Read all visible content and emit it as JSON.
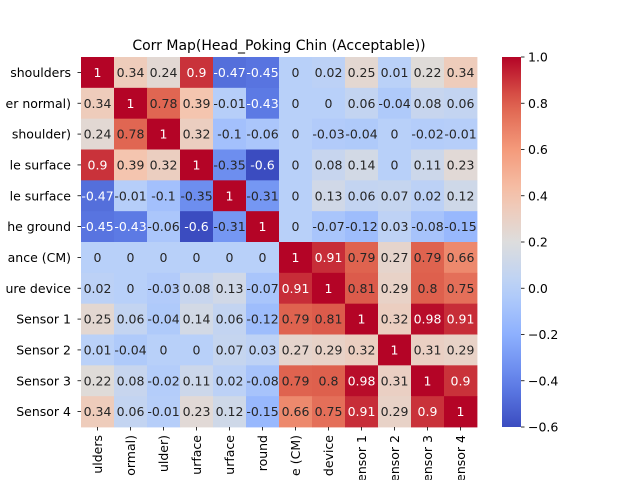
{
  "chart_data": {
    "type": "heatmap",
    "title": "Corr Map(Head_Poking Chin (Acceptable))",
    "row_labels": [
      "shoulders",
      "er normal)",
      "shoulder)",
      "le surface",
      "le surface",
      "he ground",
      "ance (CM)",
      "ure device",
      "Sensor 1",
      "Sensor 2",
      "Sensor 3",
      "Sensor 4"
    ],
    "col_labels": [
      "ulders",
      "ormal)",
      "ulder)",
      "urface",
      "urface",
      "round",
      "e (CM)",
      "device",
      "ensor 1",
      "ensor 2",
      "ensor 3",
      "ensor 4"
    ],
    "values": [
      [
        1,
        0.34,
        0.24,
        0.9,
        -0.47,
        -0.45,
        0,
        0.02,
        0.25,
        0.01,
        0.22,
        0.34
      ],
      [
        0.34,
        1,
        0.78,
        0.39,
        -0.01,
        -0.43,
        0,
        0,
        0.06,
        -0.04,
        0.08,
        0.06
      ],
      [
        0.24,
        0.78,
        1,
        0.32,
        -0.1,
        -0.06,
        0,
        -0.03,
        -0.04,
        0,
        -0.02,
        -0.01
      ],
      [
        0.9,
        0.39,
        0.32,
        1,
        -0.35,
        -0.6,
        0,
        0.08,
        0.14,
        0,
        0.11,
        0.23
      ],
      [
        -0.47,
        -0.01,
        -0.1,
        -0.35,
        1,
        -0.31,
        0,
        0.13,
        0.06,
        0.07,
        0.02,
        0.12
      ],
      [
        -0.45,
        -0.43,
        -0.06,
        -0.6,
        -0.31,
        1,
        0,
        -0.07,
        -0.12,
        0.03,
        -0.08,
        -0.15
      ],
      [
        0,
        0,
        0,
        0,
        0,
        0,
        1,
        0.91,
        0.79,
        0.27,
        0.79,
        0.66
      ],
      [
        0.02,
        0,
        -0.03,
        0.08,
        0.13,
        -0.07,
        0.91,
        1,
        0.81,
        0.29,
        0.8,
        0.75
      ],
      [
        0.25,
        0.06,
        -0.04,
        0.14,
        0.06,
        -0.12,
        0.79,
        0.81,
        1,
        0.32,
        0.98,
        0.91
      ],
      [
        0.01,
        -0.04,
        0,
        0,
        0.07,
        0.03,
        0.27,
        0.29,
        0.32,
        1,
        0.31,
        0.29
      ],
      [
        0.22,
        0.08,
        -0.02,
        0.11,
        0.02,
        -0.08,
        0.79,
        0.8,
        0.98,
        0.31,
        1,
        0.9
      ],
      [
        0.34,
        0.06,
        -0.01,
        0.23,
        0.12,
        -0.15,
        0.66,
        0.75,
        0.91,
        0.29,
        0.9,
        1
      ]
    ],
    "vmin": -0.6,
    "vmax": 1.0,
    "colormap": "coolwarm",
    "colorbar_ticks": [
      -0.6,
      -0.4,
      -0.2,
      0.0,
      0.2,
      0.4,
      0.6,
      0.8,
      1.0
    ],
    "colorbar_tick_labels": [
      "−0.6",
      "−0.4",
      "−0.2",
      "0.0",
      "0.2",
      "0.4",
      "0.6",
      "0.8",
      "1.0"
    ]
  }
}
